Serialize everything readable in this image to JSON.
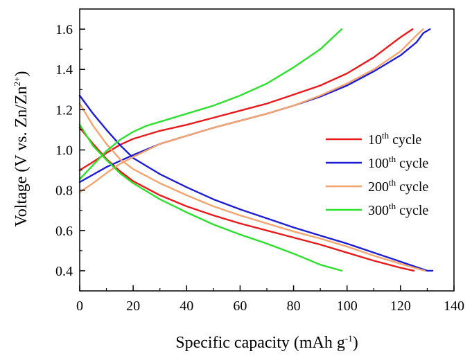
{
  "chart_data": {
    "type": "line",
    "xlabel": {
      "text": "Specific capacity (mAh g",
      "sup": "-1",
      "close": ")"
    },
    "ylabel": {
      "text": "Voltage (V vs. Zn/Zn",
      "sup": "2+",
      "close": ")"
    },
    "xlim": [
      0,
      140
    ],
    "ylim": [
      0.3,
      1.7
    ],
    "xticks": [
      0,
      20,
      40,
      60,
      80,
      100,
      120,
      140
    ],
    "yticks": [
      0.4,
      0.6,
      0.8,
      1.0,
      1.2,
      1.4,
      1.6
    ],
    "xtick_labels": [
      "0",
      "20",
      "40",
      "60",
      "80",
      "100",
      "120",
      "140"
    ],
    "ytick_labels": [
      "0.4",
      "0.6",
      "0.8",
      "1.0",
      "1.2",
      "1.4",
      "1.6"
    ],
    "grid": false,
    "legend_position": "right",
    "series": [
      {
        "name": "10",
        "name_sup": "th",
        "name_suffix": " cycle",
        "color": "#e8191a",
        "charge": {
          "x": [
            0,
            5,
            10,
            15,
            20,
            30,
            40,
            50,
            60,
            70,
            80,
            90,
            100,
            110,
            120,
            124.5
          ],
          "y": [
            0.9,
            0.94,
            0.985,
            1.025,
            1.055,
            1.095,
            1.125,
            1.16,
            1.195,
            1.23,
            1.275,
            1.32,
            1.38,
            1.46,
            1.56,
            1.6
          ]
        },
        "discharge": {
          "x": [
            0,
            5,
            10,
            15,
            20,
            30,
            40,
            50,
            60,
            70,
            80,
            90,
            100,
            110,
            120,
            125
          ],
          "y": [
            1.11,
            1.03,
            0.955,
            0.895,
            0.845,
            0.775,
            0.72,
            0.675,
            0.635,
            0.6,
            0.565,
            0.53,
            0.49,
            0.45,
            0.415,
            0.4
          ]
        }
      },
      {
        "name": "100",
        "name_sup": "th",
        "name_suffix": " cycle",
        "color": "#1c1cd4",
        "charge": {
          "x": [
            0,
            10,
            20,
            30,
            40,
            50,
            60,
            70,
            80,
            90,
            100,
            110,
            120,
            126,
            128.5,
            131
          ],
          "y": [
            0.84,
            0.915,
            0.975,
            1.03,
            1.07,
            1.11,
            1.145,
            1.18,
            1.22,
            1.265,
            1.32,
            1.39,
            1.47,
            1.535,
            1.58,
            1.6
          ]
        },
        "discharge": {
          "x": [
            0,
            5,
            10,
            15,
            20,
            30,
            40,
            50,
            60,
            70,
            80,
            90,
            100,
            110,
            120,
            130,
            132
          ],
          "y": [
            1.27,
            1.18,
            1.1,
            1.025,
            0.96,
            0.88,
            0.815,
            0.755,
            0.705,
            0.66,
            0.615,
            0.575,
            0.535,
            0.49,
            0.445,
            0.4,
            0.4
          ]
        }
      },
      {
        "name": "200",
        "name_sup": "th",
        "name_suffix": " cycle",
        "color": "#f4a46e",
        "charge": {
          "x": [
            0,
            5,
            10,
            15,
            20,
            30,
            40,
            50,
            60,
            70,
            80,
            90,
            100,
            110,
            120,
            126,
            128.5
          ],
          "y": [
            0.79,
            0.835,
            0.885,
            0.93,
            0.965,
            1.03,
            1.07,
            1.11,
            1.145,
            1.18,
            1.22,
            1.27,
            1.33,
            1.4,
            1.49,
            1.57,
            1.6
          ]
        },
        "discharge": {
          "x": [
            0,
            5,
            10,
            15,
            20,
            30,
            40,
            50,
            60,
            70,
            80,
            90,
            100,
            110,
            120,
            129
          ],
          "y": [
            1.23,
            1.12,
            1.03,
            0.955,
            0.905,
            0.835,
            0.775,
            0.72,
            0.675,
            0.635,
            0.595,
            0.56,
            0.52,
            0.475,
            0.435,
            0.4
          ]
        }
      },
      {
        "name": "300",
        "name_sup": "th",
        "name_suffix": " cycle",
        "color": "#2de02d",
        "charge": {
          "x": [
            0,
            5,
            10,
            15,
            20,
            25,
            30,
            40,
            50,
            60,
            70,
            80,
            90,
            98
          ],
          "y": [
            0.855,
            0.925,
            0.995,
            1.05,
            1.09,
            1.12,
            1.14,
            1.18,
            1.22,
            1.27,
            1.33,
            1.41,
            1.5,
            1.6
          ]
        },
        "discharge": {
          "x": [
            0,
            5,
            10,
            15,
            20,
            30,
            40,
            50,
            60,
            70,
            80,
            90,
            98
          ],
          "y": [
            1.125,
            1.02,
            0.95,
            0.885,
            0.835,
            0.755,
            0.69,
            0.63,
            0.58,
            0.535,
            0.485,
            0.43,
            0.4
          ]
        }
      }
    ]
  }
}
